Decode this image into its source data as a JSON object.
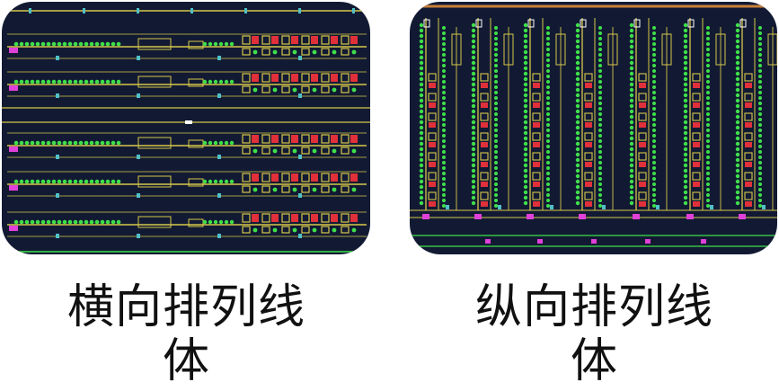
{
  "panels": [
    {
      "orientation": "horizontal",
      "caption_line1": "横向排列线",
      "caption_line2": "体"
    },
    {
      "orientation": "vertical",
      "caption_line1": "纵向排列线",
      "caption_line2": "体"
    }
  ],
  "colors": {
    "background": "#121a33",
    "line_yellow": "#d6c84a",
    "line_green": "#3ee04a",
    "box_red": "#e0303a",
    "accent_magenta": "#e040d8",
    "accent_cyan": "#50c0c8",
    "frame_orange": "#c8803a"
  }
}
